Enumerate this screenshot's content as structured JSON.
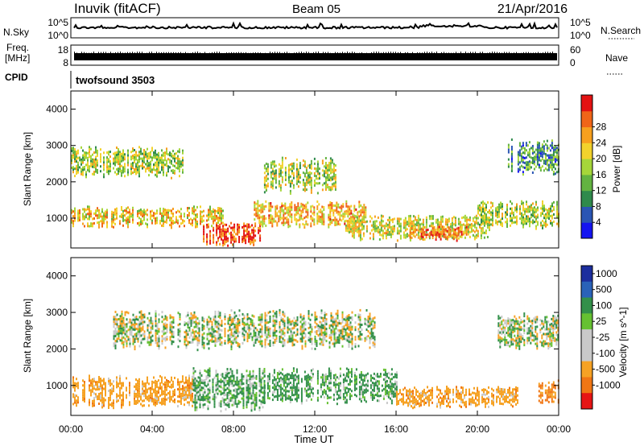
{
  "header": {
    "station": "Inuvik (fitACF)",
    "beam": "Beam 05",
    "date": "21/Apr/2016"
  },
  "noise_panel": {
    "left_label": "N.Sky",
    "right_label": "N.Search",
    "left_ticks": [
      "10^5",
      "10^0"
    ],
    "right_ticks": [
      "10^5",
      "10^0"
    ]
  },
  "freq_panel": {
    "left_label_top": "Freq.",
    "left_label_bottom": "[MHz]",
    "right_label": "Nave",
    "left_ticks": [
      "18",
      "8"
    ],
    "right_ticks": [
      "60",
      "0"
    ]
  },
  "cpid": {
    "label": "CPID",
    "value": "twofsound 3503"
  },
  "x_axis": {
    "label": "Time UT",
    "ticks": [
      "00:00",
      "04:00",
      "08:00",
      "12:00",
      "16:00",
      "20:00",
      "00:00"
    ]
  },
  "colors": {
    "power": [
      "#1414f0",
      "#2a55b4",
      "#2f8a4c",
      "#63b341",
      "#a6d63a",
      "#f2d22c",
      "#f7a01e",
      "#f06518",
      "#e31212"
    ],
    "velocity": [
      "#1c2e9e",
      "#2a62b8",
      "#33904a",
      "#66c132",
      "#c9c9c9",
      "#c9c9c9",
      "#f6a224",
      "#f07614",
      "#e61515"
    ]
  },
  "chart_data": [
    {
      "type": "heatmap",
      "title": "",
      "xlabel": "",
      "ylabel": "Slant Range [km]",
      "x_range_hours": [
        0,
        24
      ],
      "y_range_km": [
        180,
        4500
      ],
      "yticks": [
        "1000",
        "2000",
        "3000",
        "4000"
      ],
      "colorbar": {
        "label": "Power [dB]",
        "range": [
          0,
          32
        ],
        "ticks": [
          "4",
          "8",
          "12",
          "16",
          "20",
          "24",
          "28"
        ]
      },
      "echo_regions": [
        {
          "t0": 0.0,
          "t1": 7.5,
          "r0": 750,
          "r1": 1350,
          "level": 20
        },
        {
          "t0": 0.0,
          "t1": 5.5,
          "r0": 2100,
          "r1": 3000,
          "level": 16
        },
        {
          "t0": 6.5,
          "t1": 9.5,
          "r0": 250,
          "r1": 900,
          "level": 28
        },
        {
          "t0": 9.0,
          "t1": 14.5,
          "r0": 750,
          "r1": 1500,
          "level": 22
        },
        {
          "t0": 9.5,
          "t1": 13.0,
          "r0": 1700,
          "r1": 2700,
          "level": 16
        },
        {
          "t0": 13.5,
          "t1": 20.5,
          "r0": 400,
          "r1": 1100,
          "level": 18
        },
        {
          "t0": 16.5,
          "t1": 19.5,
          "r0": 400,
          "r1": 800,
          "level": 26
        },
        {
          "t0": 20.0,
          "t1": 24.0,
          "r0": 700,
          "r1": 1500,
          "level": 16
        },
        {
          "t0": 21.5,
          "t1": 24.0,
          "r0": 2200,
          "r1": 3200,
          "level": 10
        }
      ]
    },
    {
      "type": "heatmap",
      "title": "",
      "xlabel": "Time UT",
      "ylabel": "Slant Range [km]",
      "x_range_hours": [
        0,
        24
      ],
      "y_range_km": [
        180,
        4500
      ],
      "yticks": [
        "1000",
        "2000",
        "3000",
        "4000"
      ],
      "colorbar": {
        "label": "Velocity [m s^-1]",
        "ticks": [
          "1000",
          "500",
          "100",
          "25",
          "-25",
          "-100",
          "-500",
          "-1000"
        ]
      },
      "echo_regions": [
        {
          "t0": 0.0,
          "t1": 6.0,
          "r0": 400,
          "r1": 1300,
          "level": -300
        },
        {
          "t0": 2.0,
          "t1": 15.0,
          "r0": 2000,
          "r1": 3100,
          "level": 0
        },
        {
          "t0": 6.0,
          "t1": 9.5,
          "r0": 300,
          "r1": 1500,
          "level": 150
        },
        {
          "t0": 9.5,
          "t1": 16.0,
          "r0": 500,
          "r1": 1500,
          "level": 200
        },
        {
          "t0": 16.0,
          "t1": 22.0,
          "r0": 400,
          "r1": 1000,
          "level": -300
        },
        {
          "t0": 21.0,
          "t1": 24.0,
          "r0": 2000,
          "r1": 3000,
          "level": 0
        },
        {
          "t0": 23.0,
          "t1": 24.0,
          "r0": 500,
          "r1": 1200,
          "level": -600
        }
      ]
    }
  ]
}
